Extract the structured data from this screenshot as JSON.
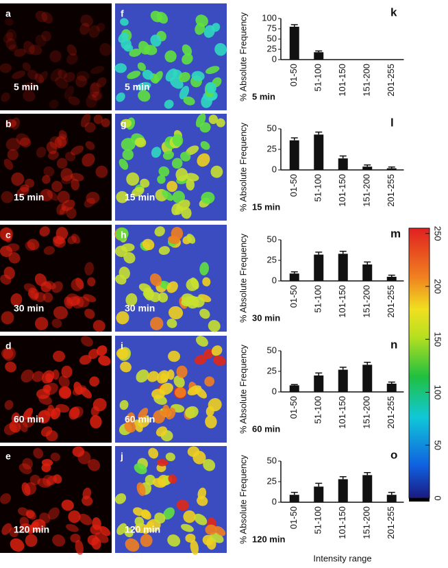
{
  "image_rows": [
    {
      "red_label": "a",
      "pseudo_label": "f",
      "time": "5 min"
    },
    {
      "red_label": "b",
      "pseudo_label": "g",
      "time": "15 min"
    },
    {
      "red_label": "c",
      "pseudo_label": "h",
      "time": "30 min"
    },
    {
      "red_label": "d",
      "pseudo_label": "i",
      "time": "60 min"
    },
    {
      "red_label": "e",
      "pseudo_label": "j",
      "time": "120 min"
    }
  ],
  "x_axis_label": "Intensity range",
  "colorbar": {
    "lim": [
      0,
      255
    ],
    "ticks": [
      0,
      50,
      100,
      150,
      200,
      250
    ]
  },
  "chart_data": [
    {
      "type": "bar",
      "panel": "k",
      "label": "5 min",
      "y_label": "% Absolute Frequency",
      "color": "#111111",
      "categories": [
        "01-50",
        "51-100",
        "101-150",
        "151-200",
        "201-255"
      ],
      "values": [
        80,
        18,
        0,
        0,
        0
      ],
      "errors": [
        5,
        3,
        null,
        null,
        null
      ],
      "ylim": [
        0,
        100
      ],
      "yticks": [
        0,
        25,
        50,
        75,
        100
      ]
    },
    {
      "type": "bar",
      "panel": "l",
      "label": "15 min",
      "y_label": "% Absolute Frequency",
      "color": "#111111",
      "categories": [
        "01-50",
        "51-100",
        "101-150",
        "151-200",
        "201-255"
      ],
      "values": [
        36,
        43,
        14,
        4,
        2
      ],
      "errors": [
        3,
        3,
        3,
        2,
        1.5
      ],
      "ylim": [
        0,
        50
      ],
      "yticks": [
        0,
        25,
        50
      ]
    },
    {
      "type": "bar",
      "panel": "m",
      "label": "30 min",
      "y_label": "% Absolute Frequency",
      "color": "#111111",
      "categories": [
        "01-50",
        "51-100",
        "101-150",
        "151-200",
        "201-255"
      ],
      "values": [
        9,
        32,
        33,
        20,
        5
      ],
      "errors": [
        2,
        3,
        3,
        3,
        2
      ],
      "ylim": [
        0,
        50
      ],
      "yticks": [
        0,
        25,
        50
      ]
    },
    {
      "type": "bar",
      "panel": "n",
      "label": "60 min",
      "y_label": "% Absolute Frequency",
      "color": "#111111",
      "categories": [
        "01-50",
        "51-100",
        "101-150",
        "151-200",
        "201-255"
      ],
      "values": [
        8,
        20,
        27,
        33,
        10
      ],
      "errors": [
        1,
        3,
        3,
        3,
        2
      ],
      "ylim": [
        0,
        50
      ],
      "yticks": [
        0,
        25,
        50
      ]
    },
    {
      "type": "bar",
      "panel": "o",
      "label": "120 min",
      "y_label": "% Absolute Frequency",
      "color": "#111111",
      "categories": [
        "01-50",
        "51-100",
        "101-150",
        "151-200",
        "201-255"
      ],
      "values": [
        9,
        19,
        28,
        33,
        9
      ],
      "errors": [
        3,
        4,
        3,
        3,
        3
      ],
      "ylim": [
        0,
        50
      ],
      "yticks": [
        0,
        25,
        50
      ]
    }
  ]
}
